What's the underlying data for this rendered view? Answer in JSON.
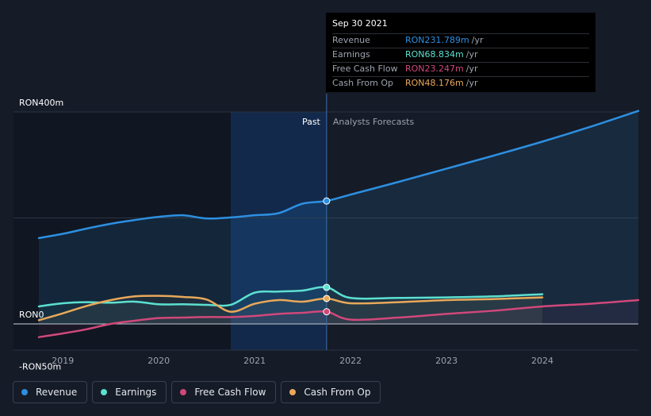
{
  "tooltip": {
    "date": "Sep 30 2021",
    "rows": [
      {
        "label": "Revenue",
        "value": "RON231.789m",
        "unit": "/yr",
        "color": "#2d8fe0"
      },
      {
        "label": "Earnings",
        "value": "RON68.834m",
        "unit": "/yr",
        "color": "#5ce0d0"
      },
      {
        "label": "Free Cash Flow",
        "value": "RON23.247m",
        "unit": "/yr",
        "color": "#d0487a"
      },
      {
        "label": "Cash From Op",
        "value": "RON48.176m",
        "unit": "/yr",
        "color": "#e8a85a"
      }
    ]
  },
  "labels": {
    "past": "Past",
    "forecast": "Analysts Forecasts"
  },
  "legend": [
    {
      "label": "Revenue",
      "color": "#2d8fe0"
    },
    {
      "label": "Earnings",
      "color": "#5ce0d0"
    },
    {
      "label": "Free Cash Flow",
      "color": "#d0487a"
    },
    {
      "label": "Cash From Op",
      "color": "#e8a85a"
    }
  ],
  "chart_data": {
    "type": "line",
    "y_tick_labels": [
      {
        "value": 400,
        "label": "RON400m"
      },
      {
        "value": 0,
        "label": "RON0"
      },
      {
        "value": -50,
        "label": "-RON50m"
      }
    ],
    "ylim": [
      -50,
      400
    ],
    "xlim": [
      2018.75,
      2025.0
    ],
    "x_ticks": [
      2019,
      2020,
      2021,
      2022,
      2023,
      2024
    ],
    "x_tick_labels": [
      "2019",
      "2020",
      "2021",
      "2022",
      "2023",
      "2024"
    ],
    "divider_x": 2021.75,
    "grid": "horizontal",
    "series": [
      {
        "name": "Revenue",
        "color": "#2d8fe0",
        "x": [
          2018.75,
          2019.0,
          2019.25,
          2019.5,
          2019.75,
          2020.0,
          2020.25,
          2020.5,
          2020.75,
          2021.0,
          2021.25,
          2021.5,
          2021.75,
          2022.0,
          2022.5,
          2023.0,
          2023.5,
          2024.0,
          2024.5,
          2025.0
        ],
        "y": [
          162,
          170,
          180,
          189,
          196,
          202,
          205,
          199,
          201,
          205,
          209,
          227,
          232,
          244,
          268,
          293,
          318,
          344,
          372,
          402
        ]
      },
      {
        "name": "Earnings",
        "color": "#5ce0d0",
        "x": [
          2018.75,
          2019.0,
          2019.25,
          2019.5,
          2019.75,
          2020.0,
          2020.25,
          2020.5,
          2020.75,
          2021.0,
          2021.25,
          2021.5,
          2021.75,
          2022.0,
          2022.5,
          2023.0,
          2023.5,
          2024.0
        ],
        "y": [
          33,
          39,
          41,
          40,
          42,
          37,
          37,
          36,
          36,
          59,
          61,
          63,
          69,
          49,
          49,
          50,
          52,
          56
        ]
      },
      {
        "name": "Free Cash Flow",
        "color": "#d0487a",
        "x": [
          2018.75,
          2019.0,
          2019.25,
          2019.5,
          2019.75,
          2020.0,
          2020.25,
          2020.5,
          2020.75,
          2021.0,
          2021.25,
          2021.5,
          2021.75,
          2022.0,
          2022.5,
          2023.0,
          2023.5,
          2024.0,
          2024.5,
          2025.0
        ],
        "y": [
          -25,
          -18,
          -10,
          0,
          6,
          11,
          12,
          13,
          13,
          15,
          19,
          21,
          23,
          8,
          12,
          19,
          25,
          33,
          38,
          45
        ]
      },
      {
        "name": "Cash From Op",
        "color": "#e8a85a",
        "x": [
          2018.75,
          2019.0,
          2019.25,
          2019.5,
          2019.75,
          2020.0,
          2020.25,
          2020.5,
          2020.75,
          2021.0,
          2021.25,
          2021.5,
          2021.75,
          2022.0,
          2022.5,
          2023.0,
          2023.5,
          2024.0
        ],
        "y": [
          7,
          20,
          34,
          45,
          52,
          53,
          51,
          46,
          23,
          38,
          45,
          42,
          48,
          39,
          41,
          45,
          47,
          50
        ]
      }
    ]
  }
}
